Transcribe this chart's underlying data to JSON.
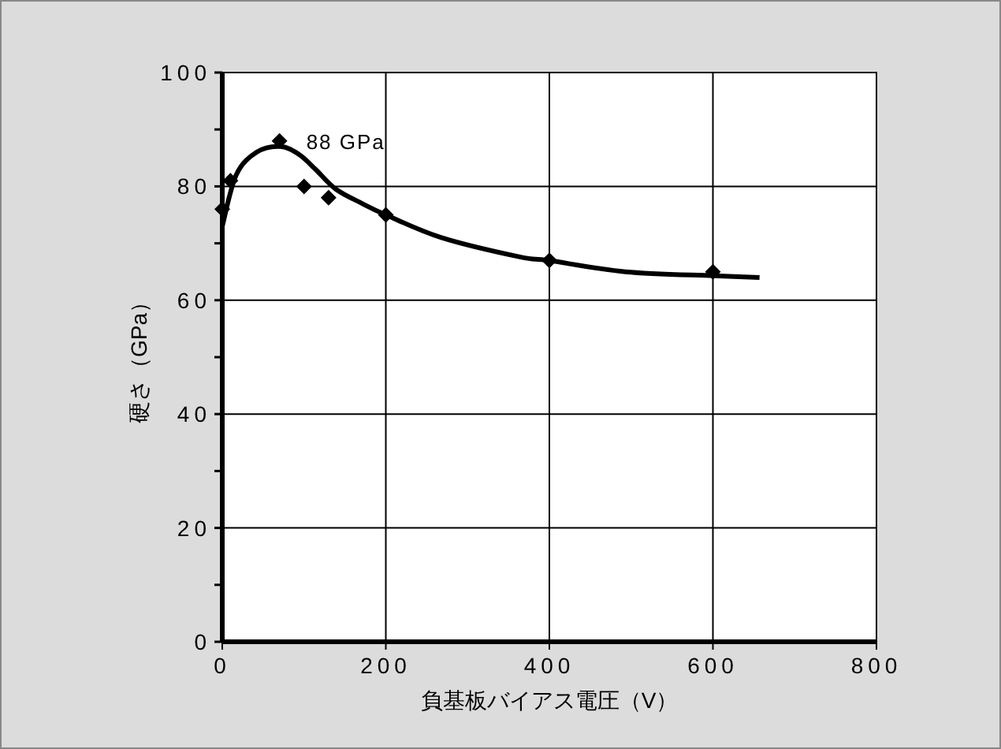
{
  "chart_data": {
    "type": "scatter",
    "xlabel": "負基板バイアス電圧（V）",
    "ylabel": "硬さ（GPa）",
    "xlim": [
      0,
      800
    ],
    "ylim": [
      0,
      100
    ],
    "xticks": [
      0,
      200,
      400,
      600,
      800
    ],
    "yticks": [
      0,
      {
        "value": 10,
        "label": null
      },
      20,
      {
        "value": 30,
        "label": null
      },
      40,
      {
        "value": 50,
        "label": null
      },
      60,
      {
        "value": 70,
        "label": null
      },
      80,
      {
        "value": 90,
        "label": null
      },
      100
    ],
    "grid": true,
    "marker": "diamond",
    "series": [
      {
        "color": "#000000",
        "x": [
          0,
          10,
          70,
          100,
          130,
          200,
          400,
          600
        ],
        "values": [
          76,
          81,
          88,
          80,
          78,
          75,
          67,
          65
        ]
      },
      {
        "type": "line",
        "color": "#000000",
        "marker": "none",
        "line_style": "solid",
        "x": [
          0,
          17,
          42,
          71,
          94,
          114,
          139,
          171,
          200,
          268,
          364,
          399,
          493,
          601,
          657
        ],
        "values": [
          73,
          82,
          86,
          87,
          85.6,
          83,
          79.5,
          77,
          75,
          71,
          67.6,
          67,
          65,
          64.3,
          64
        ]
      }
    ],
    "annotations": [
      {
        "text": "88 GPa",
        "x": 70,
        "y": 88
      }
    ]
  }
}
